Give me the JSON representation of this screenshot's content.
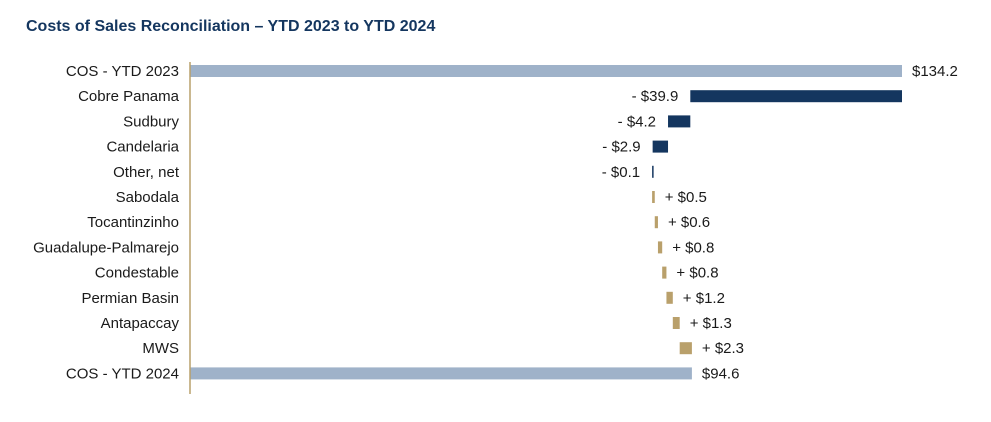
{
  "chart_data": {
    "type": "bar",
    "subtype": "waterfall",
    "title": "Costs of Sales Reconciliation – YTD 2023 to YTD 2024",
    "xlim": [
      0,
      134.2
    ],
    "grid": false,
    "legend": "none",
    "colors": {
      "total": "#9fb2c9",
      "decrease": "#14365f",
      "increase": "#b9a06b",
      "axis": "#b9a06b"
    },
    "bars": [
      {
        "category": "COS - YTD 2023",
        "kind": "total",
        "value": 134.2,
        "label": "$134.2"
      },
      {
        "category": "Cobre Panama",
        "kind": "decrease",
        "value": -39.9,
        "label": "- $39.9"
      },
      {
        "category": "Sudbury",
        "kind": "decrease",
        "value": -4.2,
        "label": "- $4.2"
      },
      {
        "category": "Candelaria",
        "kind": "decrease",
        "value": -2.9,
        "label": "- $2.9"
      },
      {
        "category": "Other, net",
        "kind": "decrease",
        "value": -0.1,
        "label": "- $0.1"
      },
      {
        "category": "Sabodala",
        "kind": "increase",
        "value": 0.5,
        "label": "+ $0.5"
      },
      {
        "category": "Tocantinzinho",
        "kind": "increase",
        "value": 0.6,
        "label": "+ $0.6"
      },
      {
        "category": "Guadalupe-Palmarejo",
        "kind": "increase",
        "value": 0.8,
        "label": "+ $0.8"
      },
      {
        "category": "Condestable",
        "kind": "increase",
        "value": 0.8,
        "label": "+ $0.8"
      },
      {
        "category": "Permian Basin",
        "kind": "increase",
        "value": 1.2,
        "label": "+ $1.2"
      },
      {
        "category": "Antapaccay",
        "kind": "increase",
        "value": 1.3,
        "label": "+ $1.3"
      },
      {
        "category": "MWS",
        "kind": "increase",
        "value": 2.3,
        "label": "+ $2.3"
      },
      {
        "category": "COS - YTD 2024",
        "kind": "total",
        "value": 94.6,
        "label": "$94.6"
      }
    ]
  }
}
